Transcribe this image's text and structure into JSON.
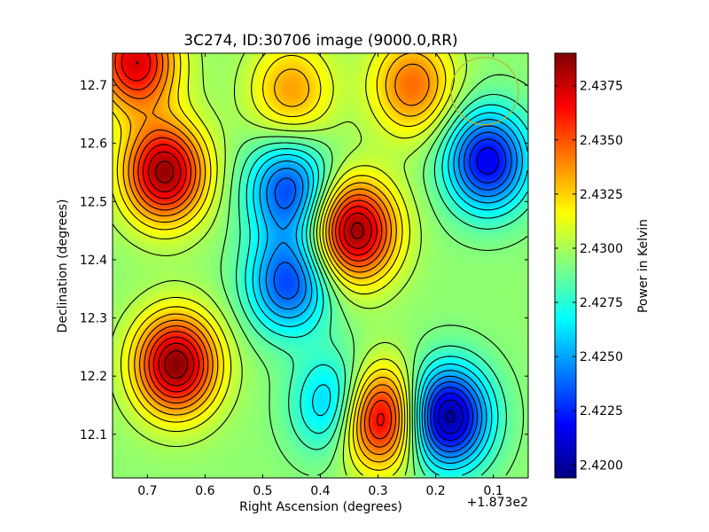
{
  "chart_data": {
    "type": "heatmap",
    "title": "3C274, ID:30706 image (9000.0,RR)",
    "xlabel": "Right Ascension (degrees)",
    "ylabel": "Declination (degrees)",
    "x_offset_label": "+1.873e2",
    "colorbar_label": "Power in Kelvin",
    "xlim": [
      0.7605,
      0.0395
    ],
    "ylim": [
      12.025,
      12.755
    ],
    "zlim": [
      2.4194,
      2.439
    ],
    "x_ticks": [
      0.7,
      0.6,
      0.5,
      0.4,
      0.3,
      0.2,
      0.1
    ],
    "x_tick_labels": [
      "0.7",
      "0.6",
      "0.5",
      "0.4",
      "0.3",
      "0.2",
      "0.1"
    ],
    "y_ticks": [
      12.1,
      12.2,
      12.3,
      12.4,
      12.5,
      12.6,
      12.7
    ],
    "y_tick_labels": [
      "12.1",
      "12.2",
      "12.3",
      "12.4",
      "12.5",
      "12.6",
      "12.7"
    ],
    "colorbar_ticks": [
      2.42,
      2.4225,
      2.425,
      2.4275,
      2.43,
      2.4325,
      2.435,
      2.4375
    ],
    "colorbar_tick_labels": [
      "2.4200",
      "2.4225",
      "2.4250",
      "2.4275",
      "2.4300",
      "2.4325",
      "2.4350",
      "2.4375"
    ],
    "colormap": "jet",
    "baseline_kelvin": 2.4295,
    "features": [
      {
        "ra": 0.67,
        "dec": 12.55,
        "peak_kelvin": 2.4385,
        "kind": "maximum"
      },
      {
        "ra": 0.65,
        "dec": 12.22,
        "peak_kelvin": 2.4388,
        "kind": "maximum"
      },
      {
        "ra": 0.34,
        "dec": 12.45,
        "peak_kelvin": 2.4387,
        "kind": "maximum"
      },
      {
        "ra": 0.3,
        "dec": 12.13,
        "peak_kelvin": 2.4388,
        "kind": "maximum"
      },
      {
        "ra": 0.72,
        "dec": 12.74,
        "peak_kelvin": 2.4372,
        "kind": "maximum"
      },
      {
        "ra": 0.24,
        "dec": 12.7,
        "peak_kelvin": 2.4345,
        "kind": "maximum"
      },
      {
        "ra": 0.45,
        "dec": 12.69,
        "peak_kelvin": 2.4335,
        "kind": "maximum"
      },
      {
        "ra": 0.18,
        "dec": 12.13,
        "peak_kelvin": 2.4197,
        "kind": "minimum"
      },
      {
        "ra": 0.11,
        "dec": 12.57,
        "peak_kelvin": 2.4215,
        "kind": "minimum"
      },
      {
        "ra": 0.455,
        "dec": 12.52,
        "peak_kelvin": 2.4232,
        "kind": "minimum"
      },
      {
        "ra": 0.455,
        "dec": 12.36,
        "peak_kelvin": 2.4232,
        "kind": "minimum"
      },
      {
        "ra": 0.37,
        "dec": 12.15,
        "peak_kelvin": 2.4242,
        "kind": "minimum"
      }
    ],
    "contour_levels": 22,
    "beam_circle": {
      "ra": 0.115,
      "dec": 12.69,
      "color": "#b8b830"
    },
    "grid": false
  }
}
